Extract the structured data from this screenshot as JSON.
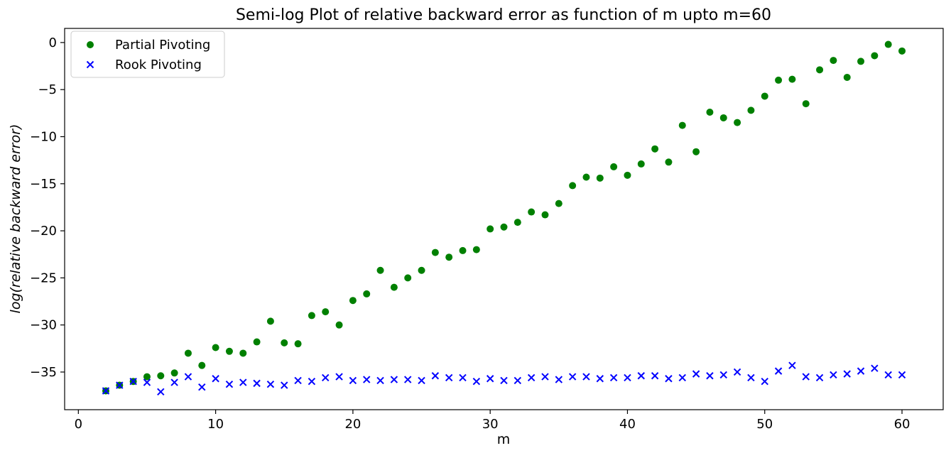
{
  "chart_data": {
    "type": "scatter",
    "title": "Semi-log Plot of relative backward error as function of m upto m=60",
    "xlabel": "m",
    "ylabel": "log(relative backward error)",
    "xlim": [
      -1,
      63
    ],
    "ylim": [
      -39,
      1.5
    ],
    "x_ticks": [
      0,
      10,
      20,
      30,
      40,
      50,
      60
    ],
    "y_ticks": [
      0,
      -5,
      -10,
      -15,
      -20,
      -25,
      -30,
      -35
    ],
    "grid": false,
    "legend_position": "top-left",
    "x": [
      2,
      3,
      4,
      5,
      6,
      7,
      8,
      9,
      10,
      11,
      12,
      13,
      14,
      15,
      16,
      17,
      18,
      19,
      20,
      21,
      22,
      23,
      24,
      25,
      26,
      27,
      28,
      29,
      30,
      31,
      32,
      33,
      34,
      35,
      36,
      37,
      38,
      39,
      40,
      41,
      42,
      43,
      44,
      45,
      46,
      47,
      48,
      49,
      50,
      51,
      52,
      53,
      54,
      55,
      56,
      57,
      58,
      59,
      60
    ],
    "series": [
      {
        "name": "Partial Pivoting",
        "marker": "circle",
        "color": "#008000",
        "values": [
          -37.0,
          -36.4,
          -36.0,
          -35.5,
          -35.4,
          -35.1,
          -33.0,
          -34.3,
          -32.4,
          -32.8,
          -33.0,
          -31.8,
          -29.6,
          -31.9,
          -32.0,
          -29.0,
          -28.6,
          -30.0,
          -27.4,
          -26.7,
          -24.2,
          -26.0,
          -25.0,
          -24.2,
          -22.3,
          -22.8,
          -22.1,
          -22.0,
          -19.8,
          -19.6,
          -19.1,
          -18.0,
          -18.3,
          -17.1,
          -15.2,
          -14.3,
          -14.4,
          -13.2,
          -14.1,
          -12.9,
          -11.3,
          -12.7,
          -8.8,
          -11.6,
          -7.4,
          -8.0,
          -8.5,
          -7.2,
          -5.7,
          -4.0,
          -3.9,
          -6.5,
          -2.9,
          -1.9,
          -3.7,
          -2.0,
          -1.4,
          -0.2,
          -0.9
        ]
      },
      {
        "name": "Rook Pivoting",
        "marker": "x",
        "color": "#0000ff",
        "values": [
          -37.0,
          -36.4,
          -36.0,
          -36.1,
          -37.1,
          -36.1,
          -35.5,
          -36.6,
          -35.7,
          -36.3,
          -36.1,
          -36.2,
          -36.3,
          -36.4,
          -35.9,
          -36.0,
          -35.6,
          -35.5,
          -35.9,
          -35.8,
          -35.9,
          -35.8,
          -35.8,
          -35.9,
          -35.4,
          -35.6,
          -35.6,
          -36.0,
          -35.7,
          -35.9,
          -35.9,
          -35.6,
          -35.5,
          -35.8,
          -35.5,
          -35.5,
          -35.7,
          -35.6,
          -35.6,
          -35.4,
          -35.4,
          -35.7,
          -35.6,
          -35.2,
          -35.4,
          -35.3,
          -35.0,
          -35.6,
          -36.0,
          -34.9,
          -34.3,
          -35.5,
          -35.6,
          -35.3,
          -35.2,
          -34.9,
          -34.6,
          -35.3,
          -35.3
        ]
      }
    ]
  }
}
